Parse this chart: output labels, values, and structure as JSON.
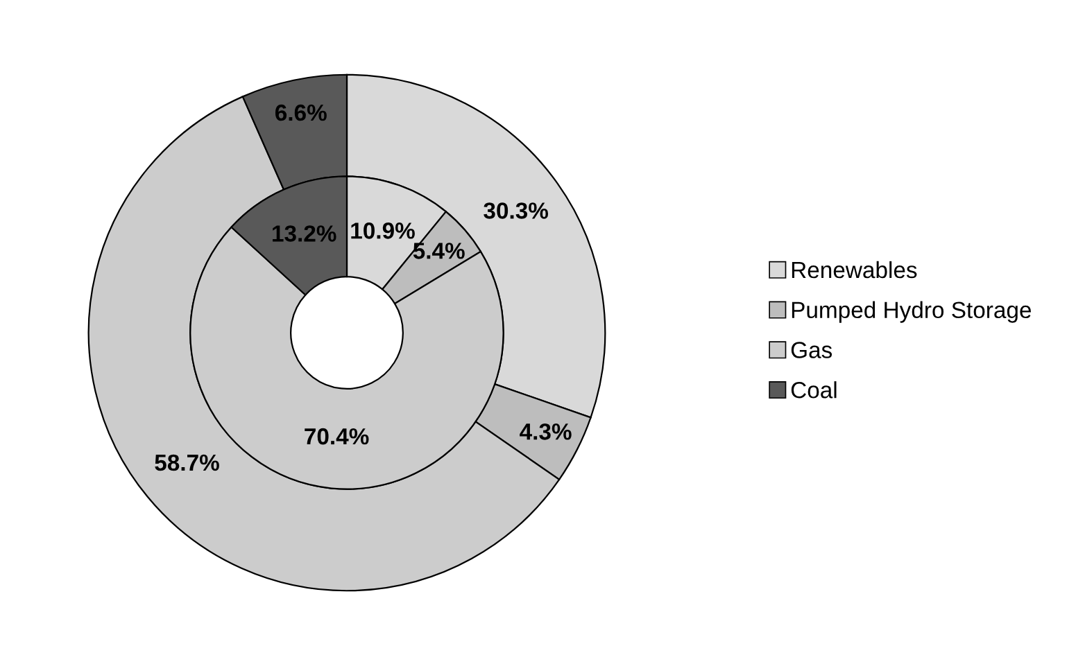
{
  "chart_data": {
    "type": "donut",
    "categories": [
      "Renewables",
      "Pumped Hydro Storage",
      "Gas",
      "Coal"
    ],
    "colors": [
      "#d9d9d9",
      "#bdbdbd",
      "#cccccc",
      "#595959"
    ],
    "legend": "right",
    "series": [
      {
        "values": [
          30.3,
          4.3,
          58.7,
          6.6
        ],
        "value_labels": [
          "30.3%",
          "4.3%",
          "58.7%",
          "6.6%"
        ]
      },
      {
        "values": [
          10.9,
          5.4,
          70.4,
          13.2
        ],
        "value_labels": [
          "10.9%",
          "5.4%",
          "70.4%",
          "13.2%"
        ]
      }
    ]
  }
}
